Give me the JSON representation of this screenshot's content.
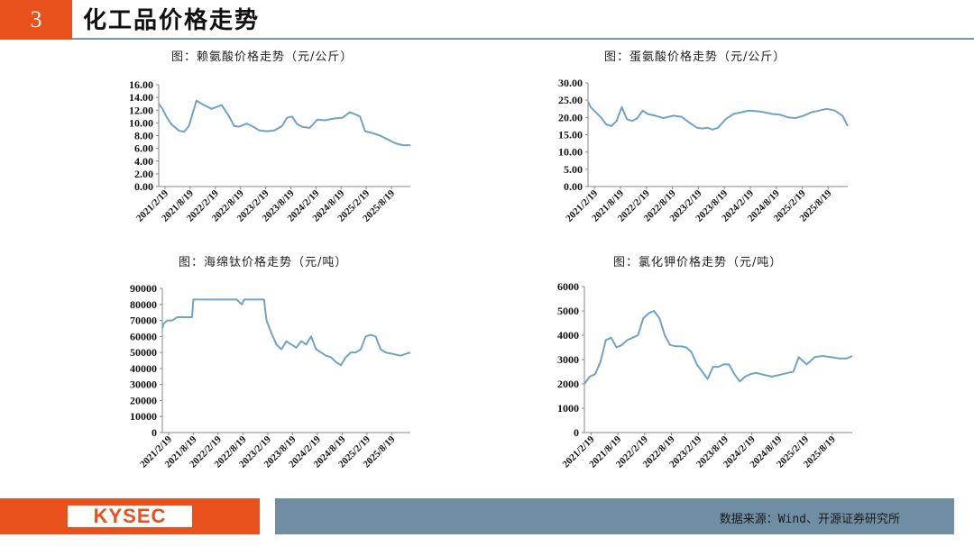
{
  "header": {
    "page_number": "3",
    "title": "化工品价格走势"
  },
  "footer": {
    "logo": "KYSEC",
    "source": "数据来源：Wind、开源证券研究所"
  },
  "colors": {
    "accent": "#e8501c",
    "line": "#6fa3c6",
    "footer_bar": "#6f8da3"
  },
  "chart_data": [
    {
      "type": "line",
      "title": "图：赖氨酸价格走势（元/公斤）",
      "ylim": [
        0,
        16
      ],
      "yticks": [
        "0.00",
        "2.00",
        "4.00",
        "6.00",
        "8.00",
        "10.00",
        "12.00",
        "14.00",
        "16.00"
      ],
      "xticks": [
        "2021/2/19",
        "2021/8/19",
        "2022/2/19",
        "2022/8/19",
        "2023/2/19",
        "2023/8/19",
        "2024/2/19",
        "2024/8/19",
        "2025/2/19",
        "2025/8/19"
      ],
      "x": [
        0,
        0.15,
        0.3,
        0.5,
        0.8,
        1.0,
        1.2,
        1.5,
        1.8,
        2.1,
        2.5,
        2.8,
        3.0,
        3.2,
        3.5,
        3.8,
        4.0,
        4.3,
        4.6,
        4.9,
        5.1,
        5.3,
        5.5,
        5.7,
        6.0,
        6.3,
        6.6,
        7.0,
        7.3,
        7.6,
        8.0,
        8.2,
        8.5,
        8.8,
        9.1,
        9.4,
        9.7,
        10.0
      ],
      "y": [
        13.0,
        12.2,
        11.0,
        9.8,
        8.8,
        8.6,
        9.5,
        13.5,
        12.8,
        12.2,
        12.8,
        11.0,
        9.5,
        9.4,
        9.9,
        9.3,
        8.8,
        8.7,
        8.8,
        9.5,
        10.8,
        11.0,
        9.8,
        9.4,
        9.2,
        10.5,
        10.4,
        10.7,
        10.8,
        11.7,
        11.0,
        8.7,
        8.4,
        8.0,
        7.4,
        6.8,
        6.5,
        6.5
      ]
    },
    {
      "type": "line",
      "title": "图：蛋氨酸价格走势（元/公斤）",
      "ylim": [
        0,
        30
      ],
      "yticks": [
        "0.00",
        "5.00",
        "10.00",
        "15.00",
        "20.00",
        "25.00",
        "30.00"
      ],
      "xticks": [
        "2021/2/19",
        "2021/8/19",
        "2022/2/19",
        "2022/8/19",
        "2023/2/19",
        "2023/8/19",
        "2024/2/19",
        "2024/8/19",
        "2025/2/19",
        "2025/8/19"
      ],
      "x": [
        0,
        0.1,
        0.3,
        0.5,
        0.7,
        0.9,
        1.1,
        1.3,
        1.5,
        1.7,
        1.9,
        2.1,
        2.3,
        2.6,
        2.9,
        3.1,
        3.3,
        3.6,
        3.9,
        4.2,
        4.4,
        4.6,
        4.8,
        5.0,
        5.3,
        5.6,
        5.9,
        6.2,
        6.5,
        6.8,
        7.1,
        7.4,
        7.7,
        8.0,
        8.3,
        8.6,
        8.9,
        9.2,
        9.5,
        9.8,
        10.0
      ],
      "y": [
        24.5,
        23.0,
        21.5,
        20.0,
        18.0,
        17.5,
        19.0,
        23.0,
        19.5,
        19.0,
        19.8,
        22.0,
        21.0,
        20.5,
        19.8,
        20.2,
        20.5,
        20.2,
        18.5,
        17.0,
        16.8,
        17.0,
        16.5,
        17.0,
        19.5,
        21.0,
        21.5,
        22.0,
        21.8,
        21.5,
        21.0,
        20.8,
        20.0,
        19.8,
        20.5,
        21.5,
        22.0,
        22.5,
        22.0,
        20.5,
        17.5
      ]
    },
    {
      "type": "line",
      "title": "图：海绵钛价格走势（元/吨）",
      "ylim": [
        0,
        90000
      ],
      "yticks": [
        "0",
        "10000",
        "20000",
        "30000",
        "40000",
        "50000",
        "60000",
        "70000",
        "80000",
        "90000"
      ],
      "xticks": [
        "2021/2/19",
        "2021/8/19",
        "2022/2/19",
        "2022/8/19",
        "2023/2/19",
        "2023/8/19",
        "2024/2/19",
        "2024/8/19",
        "2025/2/19",
        "2025/8/19"
      ],
      "x": [
        0,
        0.05,
        0.2,
        0.4,
        0.6,
        0.8,
        1.0,
        1.2,
        1.25,
        1.5,
        2.0,
        2.5,
        3.0,
        3.2,
        3.3,
        3.6,
        4.1,
        4.2,
        4.4,
        4.6,
        4.8,
        5.0,
        5.2,
        5.4,
        5.6,
        5.8,
        6.0,
        6.2,
        6.4,
        6.6,
        6.8,
        7.0,
        7.2,
        7.4,
        7.6,
        7.8,
        8.0,
        8.2,
        8.4,
        8.6,
        8.8,
        9.0,
        9.3,
        9.6,
        10.0
      ],
      "y": [
        65000,
        68000,
        70000,
        70000,
        72000,
        72000,
        72000,
        72000,
        83000,
        83000,
        83000,
        83000,
        83000,
        80000,
        83000,
        83000,
        83000,
        70000,
        62000,
        55000,
        52000,
        57000,
        55000,
        53000,
        57000,
        55000,
        60000,
        52000,
        50000,
        48000,
        47000,
        44000,
        42000,
        47000,
        50000,
        50000,
        52000,
        60000,
        61000,
        60000,
        52000,
        50000,
        49000,
        48000,
        50000
      ]
    },
    {
      "type": "line",
      "title": "图：氯化钾价格走势（元/吨）",
      "ylim": [
        0,
        6000
      ],
      "yticks": [
        "0",
        "1000",
        "2000",
        "3000",
        "4000",
        "5000",
        "6000"
      ],
      "xticks": [
        "2021/2/19",
        "2021/8/19",
        "2022/2/19",
        "2022/8/19",
        "2023/2/19",
        "2023/8/19",
        "2024/2/19",
        "2024/8/19",
        "2025/2/19",
        "2025/8/19"
      ],
      "x": [
        0,
        0.2,
        0.4,
        0.6,
        0.8,
        1.0,
        1.2,
        1.4,
        1.6,
        1.8,
        2.0,
        2.2,
        2.4,
        2.6,
        2.8,
        3.0,
        3.2,
        3.4,
        3.6,
        3.8,
        4.0,
        4.2,
        4.4,
        4.6,
        4.8,
        5.0,
        5.2,
        5.4,
        5.6,
        5.8,
        6.0,
        6.2,
        6.4,
        6.6,
        6.8,
        7.0,
        7.2,
        7.4,
        7.6,
        7.8,
        8.0,
        8.3,
        8.6,
        8.9,
        9.2,
        9.5,
        9.8,
        10.0
      ],
      "y": [
        2000,
        2300,
        2400,
        2900,
        3800,
        3900,
        3500,
        3600,
        3800,
        3900,
        4000,
        4700,
        4900,
        5000,
        4700,
        4000,
        3600,
        3550,
        3550,
        3500,
        3300,
        2800,
        2500,
        2200,
        2700,
        2700,
        2800,
        2800,
        2400,
        2100,
        2300,
        2400,
        2450,
        2400,
        2350,
        2300,
        2350,
        2400,
        2450,
        2500,
        3100,
        2800,
        3100,
        3150,
        3100,
        3050,
        3050,
        3150
      ]
    }
  ]
}
